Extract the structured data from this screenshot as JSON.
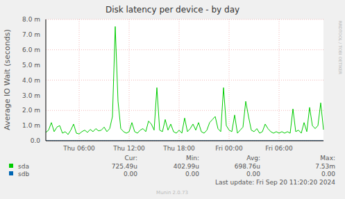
{
  "chart_data": {
    "type": "line",
    "title": "Disk latency per device - by day",
    "y_label": "Average IO Wait (seconds)",
    "categories": [
      null,
      null,
      null,
      null,
      null,
      null,
      null,
      null,
      null,
      null,
      null,
      null,
      "Thu 06:00",
      null,
      null,
      null,
      null,
      null,
      null,
      null,
      null,
      null,
      null,
      null,
      null,
      null,
      null,
      null,
      null,
      null,
      "Thu 12:00",
      null,
      null,
      null,
      null,
      null,
      null,
      null,
      null,
      null,
      null,
      null,
      null,
      null,
      null,
      null,
      null,
      null,
      "Thu 18:00",
      null,
      null,
      null,
      null,
      null,
      null,
      null,
      null,
      null,
      null,
      null,
      null,
      null,
      null,
      null,
      null,
      null,
      "Fri 00:00",
      null,
      null,
      null,
      null,
      null,
      null,
      null,
      null,
      null,
      null,
      null,
      null,
      null,
      null,
      null,
      null,
      null,
      "Fri 06:00",
      null,
      null,
      null,
      null,
      null,
      null,
      null,
      null,
      null,
      null,
      null,
      null,
      null,
      null,
      null,
      null
    ],
    "series": [
      {
        "name": "sda",
        "color": "#00cc00",
        "stats": [
          "725.49u",
          "402.99u",
          "698.76u",
          "7.53m"
        ],
        "values": [
          0.00055,
          0.0007,
          0.0012,
          0.0006,
          0.0009,
          0.001,
          0.0005,
          0.0006,
          0.00041,
          0.0007,
          0.0011,
          0.0005,
          0.00045,
          0.0006,
          0.0007,
          0.00055,
          0.00075,
          0.0006,
          0.0008,
          0.00065,
          0.0007,
          0.0009,
          0.0006,
          0.0008,
          0.0016,
          0.00753,
          0.0026,
          0.0008,
          0.0006,
          0.0005,
          0.0006,
          0.0012,
          0.0006,
          0.0005,
          0.0007,
          0.0008,
          0.0006,
          0.0013,
          0.0011,
          0.0007,
          0.0035,
          0.0007,
          0.0006,
          0.0014,
          0.0007,
          0.0011,
          0.0006,
          0.0005,
          0.0007,
          0.0005,
          0.0015,
          0.0006,
          0.0008,
          0.0011,
          0.0007,
          0.0012,
          0.0006,
          0.0005,
          0.0007,
          0.0012,
          0.0014,
          0.0016,
          0.0008,
          0.0006,
          0.0035,
          0.001,
          0.0007,
          0.0006,
          0.0017,
          0.0005,
          0.0007,
          0.0009,
          0.0026,
          0.0016,
          0.0007,
          0.0006,
          0.0008,
          0.0005,
          0.0006,
          0.0011,
          0.0008,
          0.0006,
          0.0005,
          0.0006,
          0.0005,
          0.0006,
          0.0005,
          0.0006,
          0.0005,
          0.0021,
          0.0006,
          0.0007,
          0.0005,
          0.0012,
          0.0006,
          0.0022,
          0.001,
          0.0008,
          0.001,
          0.0025,
          0.00073
        ]
      },
      {
        "name": "sdb",
        "color": "#0066b3",
        "stats": [
          "0.00",
          "0.00",
          "0.00",
          "0.00"
        ],
        "values": [
          0,
          0,
          0,
          0,
          0,
          0,
          0,
          0,
          0,
          0,
          0,
          0,
          0,
          0,
          0,
          0,
          0,
          0,
          0,
          0,
          0,
          0,
          0,
          0,
          0,
          0,
          0,
          0,
          0,
          0,
          0,
          0,
          0,
          0,
          0,
          0,
          0,
          0,
          0,
          0,
          0,
          0,
          0,
          0,
          0,
          0,
          0,
          0,
          0,
          0,
          0,
          0,
          0,
          0,
          0,
          0,
          0,
          0,
          0,
          0,
          0,
          0,
          0,
          0,
          0,
          0,
          0,
          0,
          0,
          0,
          0,
          0,
          0,
          0,
          0,
          0,
          0,
          0,
          0,
          0,
          0,
          0,
          0,
          0,
          0,
          0,
          0,
          0,
          0,
          0,
          0,
          0,
          0,
          0,
          0,
          0,
          0,
          0,
          0,
          0,
          0
        ]
      }
    ],
    "ylim": [
      0,
      0.008
    ],
    "yticks": [
      {
        "value": 0,
        "label": "0.0"
      },
      {
        "value": 0.001,
        "label": "1.0 m"
      },
      {
        "value": 0.002,
        "label": "2.0 m"
      },
      {
        "value": 0.003,
        "label": "3.0 m"
      },
      {
        "value": 0.004,
        "label": "4.0 m"
      },
      {
        "value": 0.005,
        "label": "5.0 m"
      },
      {
        "value": 0.006,
        "label": "6.0 m"
      },
      {
        "value": 0.007,
        "label": "7.0 m"
      },
      {
        "value": 0.008,
        "label": "8.0 m"
      }
    ],
    "grid": true,
    "stats_columns": [
      "Cur:",
      "Min:",
      "Avg:",
      "Max:"
    ],
    "footer": "Last update: Fri Sep 20 11:20:20 2024",
    "credit": "Munin 2.0.73",
    "watermark": "RRDTOOL / TOBI OETIKER"
  }
}
